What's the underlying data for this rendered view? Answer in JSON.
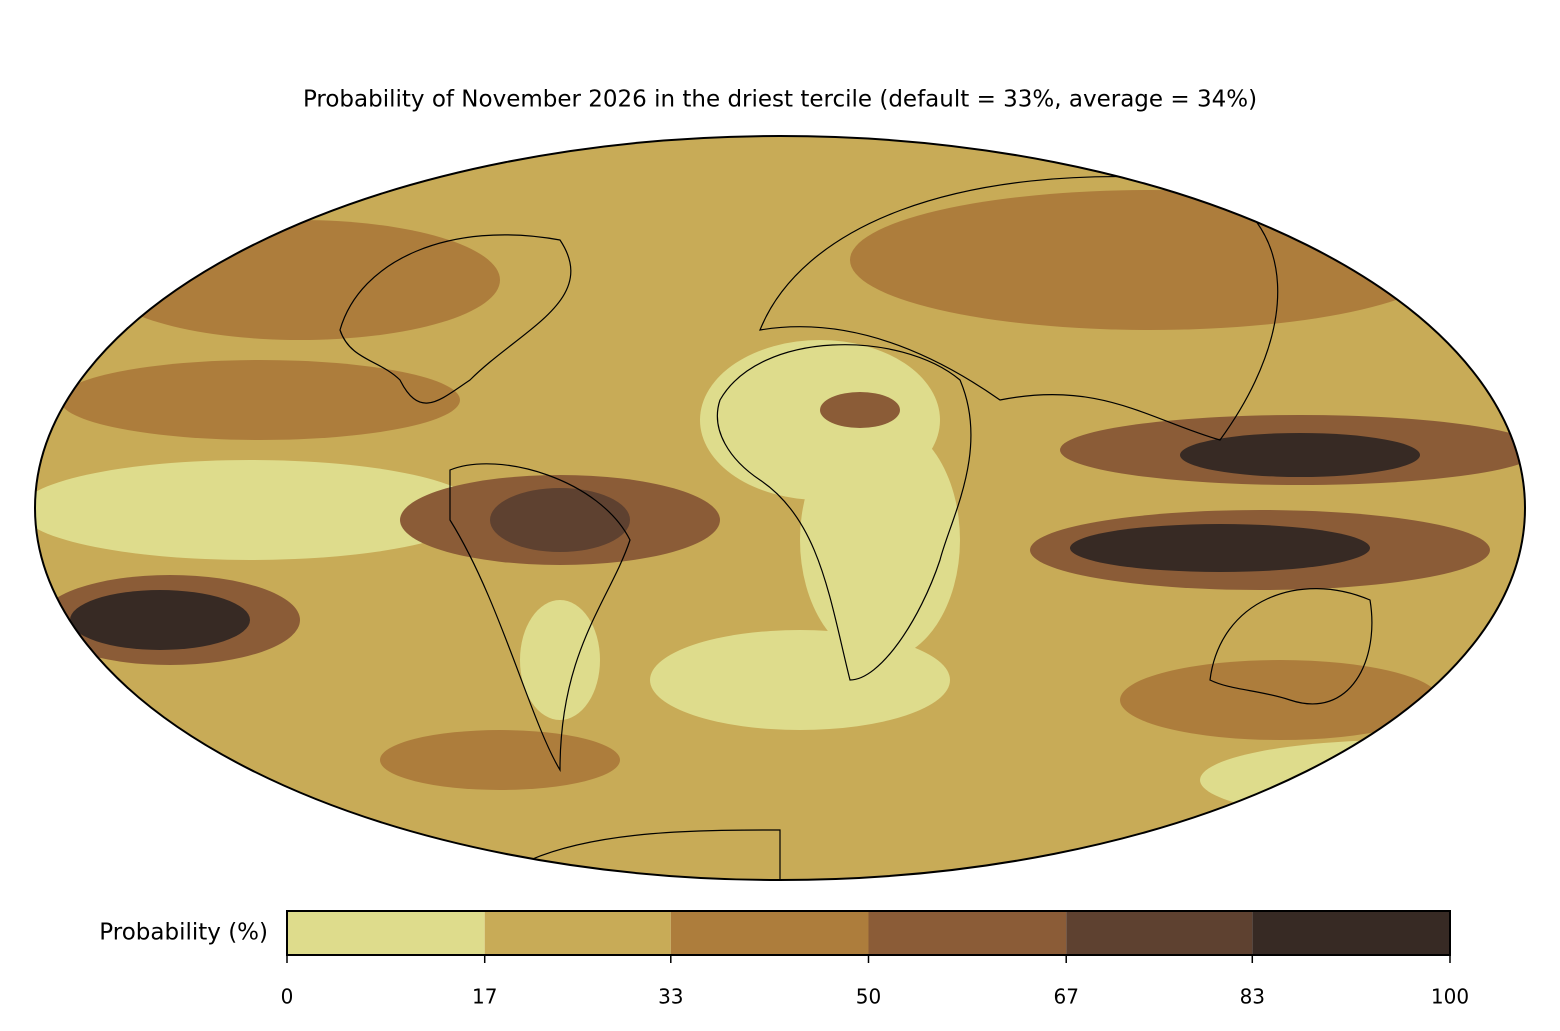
{
  "chart_data": {
    "type": "map",
    "title": "Probability of November 2026 in the driest tercile (default = 33%, average = 34%)",
    "colorbar_label": "Probability (%)",
    "clim": [
      0,
      100
    ],
    "ticks": [
      0,
      17,
      33,
      50,
      67,
      83,
      100
    ],
    "colors": [
      "#dedc8c",
      "#c8ab57",
      "#ad7d3c",
      "#8b5c37",
      "#5e4130",
      "#372a24"
    ]
  }
}
